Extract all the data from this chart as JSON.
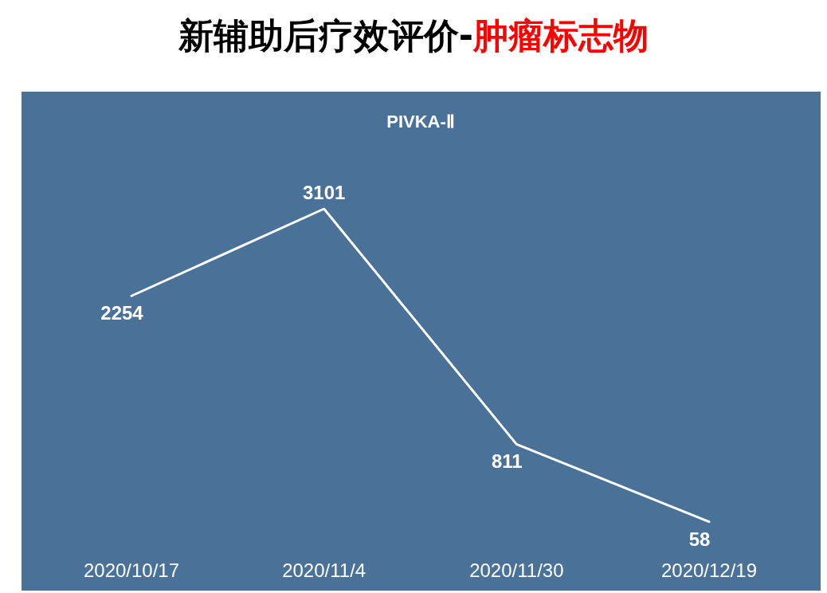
{
  "chart_data": {
    "type": "line",
    "title": "新辅助后疗效评价-肿瘤标志物",
    "subtitle": "PIVKA-Ⅱ",
    "categories": [
      "2020/10/17",
      "2020/11/4",
      "2020/11/30",
      "2020/12/19"
    ],
    "series": [
      {
        "color": "#ffffff",
        "values": [
          2254,
          3101,
          811,
          58
        ]
      }
    ],
    "data_labels": true
  }
}
